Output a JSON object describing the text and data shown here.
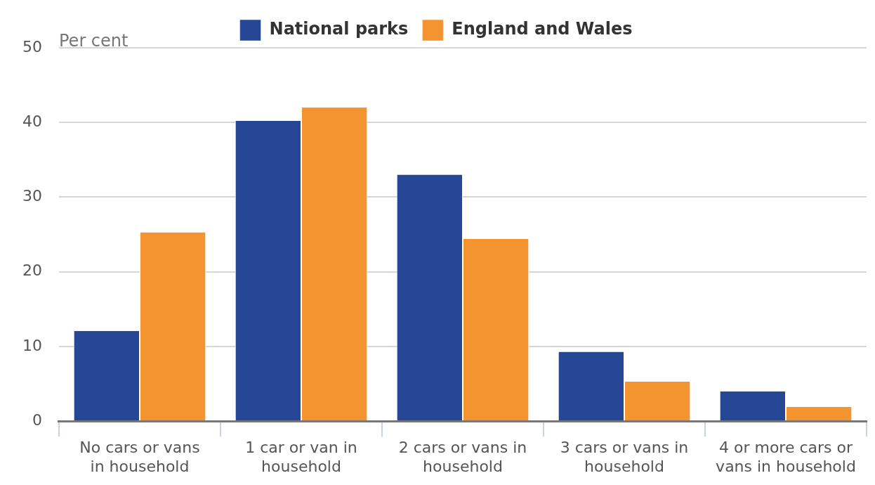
{
  "chart_data": {
    "type": "bar",
    "ylabel": "Per cent",
    "categories": [
      "No cars or vans in household",
      "1 car or van in household",
      "2 cars or vans in household",
      "3 cars or vans in household",
      "4 or more cars or vans in household"
    ],
    "series": [
      {
        "name": "National parks",
        "color": "#264796",
        "values": [
          12.1,
          40.2,
          33.0,
          9.3,
          4.0
        ]
      },
      {
        "name": "England and Wales",
        "color": "#f39431",
        "values": [
          25.3,
          42.0,
          24.4,
          5.3,
          1.9
        ]
      }
    ],
    "ylim": [
      0,
      50
    ],
    "yticks": [
      0,
      10,
      20,
      30,
      40,
      50
    ],
    "grid": "y",
    "legend": "top"
  }
}
